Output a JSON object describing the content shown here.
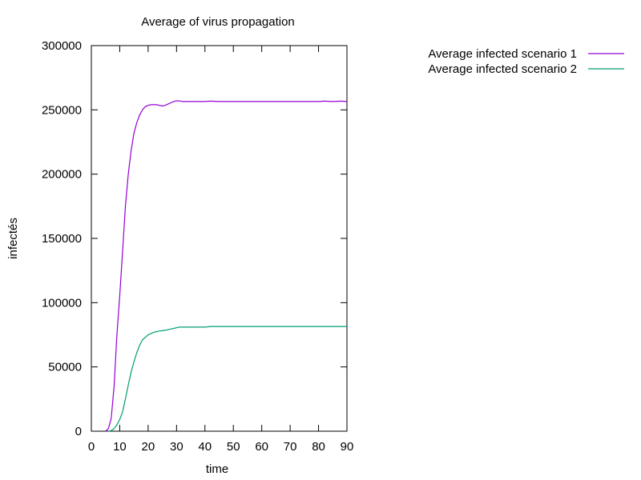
{
  "chart_data": {
    "type": "line",
    "title": "Average of virus propagation",
    "xlabel": "time",
    "ylabel": "infectés",
    "xlim": [
      0,
      90
    ],
    "ylim": [
      0,
      300000
    ],
    "xticks": [
      "0",
      "10",
      "20",
      "30",
      "40",
      "50",
      "60",
      "70",
      "80",
      "90"
    ],
    "yticks": [
      "0",
      "50000",
      "100000",
      "150000",
      "200000",
      "250000",
      "300000"
    ],
    "grid": false,
    "legend_position": "outside-top-right",
    "series": [
      {
        "name": "Average infected scenario 1",
        "color": "#9400d3",
        "x": [
          5,
          6,
          7,
          8,
          9,
          10,
          11,
          12,
          13,
          14,
          15,
          16,
          17,
          18,
          19,
          20,
          21,
          22,
          23,
          24,
          25,
          26,
          27,
          28,
          29,
          30,
          31,
          32,
          33,
          35,
          38,
          40,
          42,
          45,
          50,
          55,
          60,
          65,
          70,
          75,
          80,
          82,
          85,
          88,
          90
        ],
        "y": [
          0,
          2000,
          10000,
          35000,
          75000,
          105000,
          140000,
          175000,
          200000,
          218000,
          232000,
          240000,
          246000,
          250000,
          252500,
          253500,
          254000,
          254000,
          254000,
          253500,
          253000,
          253500,
          254500,
          255500,
          256500,
          257000,
          257000,
          256500,
          256500,
          256500,
          256500,
          256500,
          256800,
          256500,
          256500,
          256500,
          256500,
          256500,
          256500,
          256500,
          256500,
          256800,
          256500,
          256800,
          256500
        ]
      },
      {
        "name": "Average infected scenario 2",
        "color": "#009e73",
        "x": [
          6,
          7,
          8,
          9,
          10,
          11,
          12,
          13,
          14,
          15,
          16,
          17,
          18,
          19,
          20,
          21,
          22,
          23,
          24,
          25,
          26,
          27,
          28,
          29,
          30,
          31,
          32,
          35,
          38,
          40,
          42,
          45,
          50,
          55,
          60,
          65,
          70,
          75,
          80,
          85,
          90
        ],
        "y": [
          0,
          500,
          2000,
          5000,
          9000,
          15000,
          25000,
          36000,
          46000,
          54000,
          61000,
          67000,
          71000,
          73000,
          75000,
          76000,
          77000,
          77500,
          78000,
          78200,
          78500,
          79000,
          79500,
          80000,
          80500,
          81000,
          81000,
          81000,
          81000,
          81000,
          81500,
          81500,
          81500,
          81500,
          81500,
          81500,
          81500,
          81500,
          81500,
          81500,
          81500
        ]
      }
    ]
  }
}
